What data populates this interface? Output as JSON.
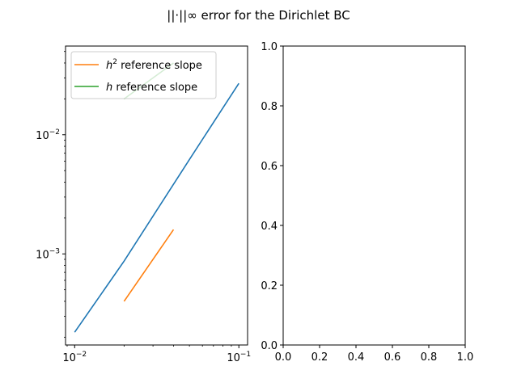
{
  "figure": {
    "title": "||·||∞ error for the Dirichlet BC"
  },
  "chart_data": [
    {
      "type": "line",
      "xscale": "log",
      "yscale": "log",
      "xlim": [
        0.0088,
        0.113
      ],
      "ylim": [
        0.000172,
        0.0555
      ],
      "xticks": [
        {
          "value": 0.01,
          "base": "10",
          "exp": "−2"
        },
        {
          "value": 0.1,
          "base": "10",
          "exp": "−1"
        }
      ],
      "yticks": [
        {
          "value": 0.001,
          "base": "10",
          "exp": "−3"
        },
        {
          "value": 0.01,
          "base": "10",
          "exp": "−2"
        }
      ],
      "legend": {
        "placement": "upper-left",
        "entries": [
          {
            "pre": "h",
            "sup": "2",
            "post": " reference slope",
            "color": "#ff7f0e"
          },
          {
            "pre": "h",
            "sup": "",
            "post": " reference slope",
            "color": "#2ca02c"
          }
        ]
      },
      "series": [
        {
          "color": "#1f77b4",
          "x": [
            0.01,
            0.02,
            0.05,
            0.1
          ],
          "y": [
            0.00022,
            0.00087,
            0.0062,
            0.027
          ]
        },
        {
          "color": "#ff7f0e",
          "x": [
            0.02,
            0.04
          ],
          "y": [
            0.0004,
            0.0016
          ]
        },
        {
          "color": "#2ca02c",
          "x": [
            0.02,
            0.04
          ],
          "y": [
            0.02,
            0.04
          ]
        }
      ]
    },
    {
      "type": "line",
      "xlim": [
        0,
        1
      ],
      "ylim": [
        0,
        1
      ],
      "xticks": [
        "0.0",
        "0.2",
        "0.4",
        "0.6",
        "0.8",
        "1.0"
      ],
      "yticks": [
        "0.0",
        "0.2",
        "0.4",
        "0.6",
        "0.8",
        "1.0"
      ],
      "series": []
    }
  ]
}
